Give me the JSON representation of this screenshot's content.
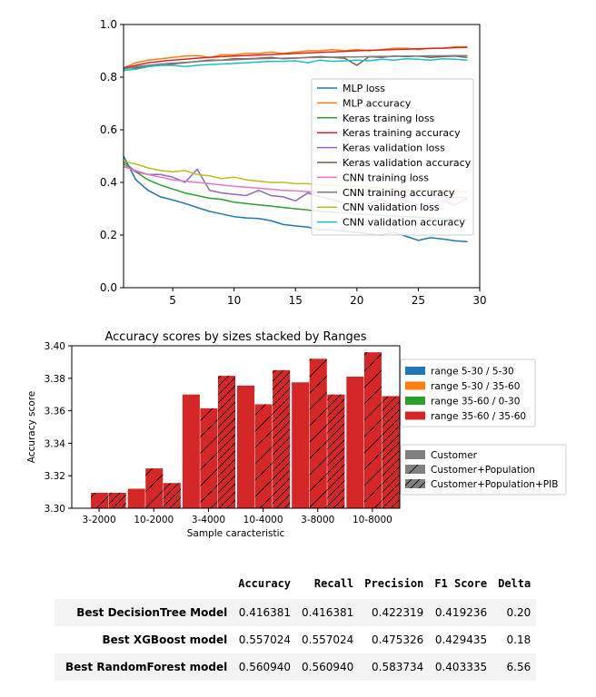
{
  "chart_data": [
    {
      "type": "line",
      "xlim": [
        1,
        30
      ],
      "ylim": [
        0.0,
        1.0
      ],
      "xticks": [
        "5",
        "10",
        "15",
        "20",
        "25",
        "30"
      ],
      "yticks": [
        "0.0",
        "0.2",
        "0.4",
        "0.6",
        "0.8",
        "1.0"
      ],
      "legend_position": "center-right",
      "x": [
        1,
        2,
        3,
        4,
        5,
        6,
        7,
        8,
        9,
        10,
        11,
        12,
        13,
        14,
        15,
        16,
        17,
        18,
        19,
        20,
        21,
        22,
        23,
        24,
        25,
        26,
        27,
        28,
        29
      ],
      "series": [
        {
          "name": "MLP loss",
          "color": "#1f77b4",
          "values": [
            0.5,
            0.41,
            0.37,
            0.345,
            0.333,
            0.32,
            0.305,
            0.29,
            0.28,
            0.27,
            0.265,
            0.263,
            0.255,
            0.24,
            0.235,
            0.23,
            0.22,
            0.22,
            0.215,
            0.21,
            0.205,
            0.2,
            0.21,
            0.195,
            0.18,
            0.19,
            0.185,
            0.178,
            0.175
          ]
        },
        {
          "name": "MLP accuracy",
          "color": "#ff7f0e",
          "values": [
            0.835,
            0.855,
            0.865,
            0.87,
            0.875,
            0.88,
            0.882,
            0.875,
            0.885,
            0.885,
            0.89,
            0.89,
            0.895,
            0.89,
            0.895,
            0.9,
            0.9,
            0.905,
            0.9,
            0.905,
            0.9,
            0.905,
            0.91,
            0.91,
            0.905,
            0.91,
            0.91,
            0.915,
            0.915
          ]
        },
        {
          "name": "Keras training loss",
          "color": "#2ca02c",
          "values": [
            0.48,
            0.44,
            0.41,
            0.39,
            0.375,
            0.36,
            0.35,
            0.34,
            0.335,
            0.325,
            0.32,
            0.315,
            0.31,
            0.305,
            0.3,
            0.295,
            0.29,
            0.287,
            0.284,
            0.28,
            0.278,
            0.275,
            0.272,
            0.27,
            0.268,
            0.265,
            0.263,
            0.26,
            0.258
          ]
        },
        {
          "name": "Keras training accuracy",
          "color": "#d62728",
          "values": [
            0.835,
            0.845,
            0.855,
            0.86,
            0.865,
            0.868,
            0.872,
            0.875,
            0.878,
            0.88,
            0.882,
            0.884,
            0.886,
            0.888,
            0.89,
            0.892,
            0.894,
            0.896,
            0.898,
            0.9,
            0.902,
            0.903,
            0.905,
            0.906,
            0.908,
            0.909,
            0.91,
            0.912,
            0.913
          ]
        },
        {
          "name": "Keras validation loss",
          "color": "#9467bd",
          "values": [
            0.47,
            0.44,
            0.43,
            0.43,
            0.42,
            0.4,
            0.45,
            0.37,
            0.36,
            0.355,
            0.35,
            0.37,
            0.35,
            0.345,
            0.33,
            0.36,
            0.345,
            0.335,
            0.32,
            0.325,
            0.32,
            0.335,
            0.31,
            0.33,
            0.315,
            0.32,
            0.33,
            0.315,
            0.34
          ]
        },
        {
          "name": "Keras validation accuracy",
          "color": "#8c564b",
          "values": [
            0.835,
            0.835,
            0.84,
            0.845,
            0.85,
            0.855,
            0.86,
            0.865,
            0.865,
            0.87,
            0.87,
            0.872,
            0.875,
            0.87,
            0.872,
            0.875,
            0.878,
            0.875,
            0.872,
            0.845,
            0.878,
            0.875,
            0.88,
            0.878,
            0.88,
            0.875,
            0.878,
            0.88,
            0.875
          ]
        },
        {
          "name": "CNN training loss",
          "color": "#e377c2",
          "values": [
            0.46,
            0.445,
            0.43,
            0.42,
            0.41,
            0.405,
            0.4,
            0.395,
            0.39,
            0.385,
            0.382,
            0.378,
            0.374,
            0.37,
            0.368,
            0.365,
            0.362,
            0.36,
            0.357,
            0.355,
            0.353,
            0.351,
            0.35,
            0.348,
            0.346,
            0.345,
            0.344,
            0.343,
            0.342
          ]
        },
        {
          "name": "CNN training accuracy",
          "color": "#7f7f7f",
          "values": [
            0.83,
            0.84,
            0.845,
            0.85,
            0.853,
            0.856,
            0.859,
            0.862,
            0.864,
            0.866,
            0.868,
            0.87,
            0.871,
            0.872,
            0.873,
            0.874,
            0.875,
            0.876,
            0.877,
            0.877,
            0.878,
            0.879,
            0.879,
            0.88,
            0.88,
            0.881,
            0.881,
            0.882,
            0.882
          ]
        },
        {
          "name": "CNN validation loss",
          "color": "#bcbd22",
          "values": [
            0.48,
            0.47,
            0.455,
            0.445,
            0.44,
            0.445,
            0.43,
            0.425,
            0.415,
            0.42,
            0.41,
            0.405,
            0.4,
            0.4,
            0.395,
            0.395,
            0.39,
            0.39,
            0.385,
            0.385,
            0.38,
            0.38,
            0.375,
            0.375,
            0.37,
            0.37,
            0.368,
            0.365,
            0.365
          ]
        },
        {
          "name": "CNN validation accuracy",
          "color": "#17becf",
          "values": [
            0.825,
            0.83,
            0.84,
            0.845,
            0.845,
            0.84,
            0.845,
            0.848,
            0.85,
            0.852,
            0.855,
            0.858,
            0.86,
            0.86,
            0.862,
            0.855,
            0.865,
            0.86,
            0.862,
            0.865,
            0.862,
            0.868,
            0.865,
            0.87,
            0.868,
            0.865,
            0.87,
            0.868,
            0.865
          ]
        }
      ]
    },
    {
      "type": "bar",
      "title": "Accuracy scores by sizes stacked by Ranges",
      "xlabel": "Sample caracteristic",
      "ylabel": "Accuracy score",
      "ylim": [
        3.3,
        3.4
      ],
      "yticks": [
        "3.30",
        "3.32",
        "3.34",
        "3.36",
        "3.38",
        "3.40"
      ],
      "categories": [
        "3-2000",
        "10-2000",
        "3-4000",
        "10-4000",
        "3-8000",
        "10-8000"
      ],
      "bar_color": "#d62728",
      "hatch_series": [
        {
          "name": "Customer",
          "hatch": "none",
          "values": [
            3.3,
            3.312,
            3.37,
            3.3755,
            3.3775,
            3.381
          ]
        },
        {
          "name": "Customer+Population",
          "hatch": "single",
          "values": [
            3.3095,
            3.3245,
            3.3615,
            3.364,
            3.392,
            3.396
          ]
        },
        {
          "name": "Customer+Population+PIB",
          "hatch": "double",
          "values": [
            3.3095,
            3.3155,
            3.3815,
            3.385,
            3.37,
            3.369
          ]
        }
      ],
      "legend_ranges": [
        {
          "name": "range 5-30 / 5-30",
          "color": "#1f77b4"
        },
        {
          "name": "range 5-30 / 35-60",
          "color": "#ff7f0e"
        },
        {
          "name": "range 35-60 / 0-30",
          "color": "#2ca02c"
        },
        {
          "name": "range 35-60 / 35-60",
          "color": "#d62728"
        }
      ]
    }
  ],
  "table": {
    "columns": [
      "Accuracy",
      "Recall",
      "Precision",
      "F1 Score",
      "Delta"
    ],
    "rows": [
      {
        "label": "Best DecisionTree Model",
        "cells": [
          "0.416381",
          "0.416381",
          "0.422319",
          "0.419236",
          "0.20"
        ]
      },
      {
        "label": "Best XGBoost model",
        "cells": [
          "0.557024",
          "0.557024",
          "0.475326",
          "0.429435",
          "0.18"
        ]
      },
      {
        "label": "Best RandomForest model",
        "cells": [
          "0.560940",
          "0.560940",
          "0.583734",
          "0.403335",
          "6.56"
        ]
      }
    ]
  }
}
